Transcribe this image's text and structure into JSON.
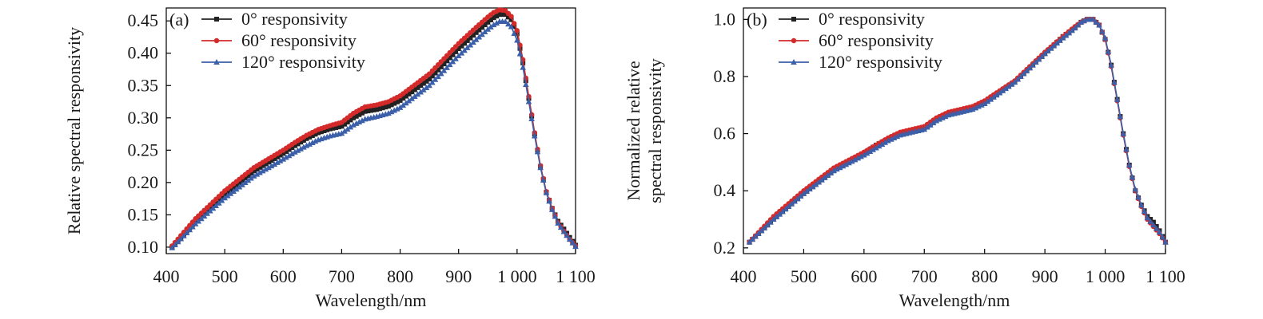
{
  "colors": {
    "s0": "#222222",
    "s60": "#d42a2a",
    "s120": "#3b5fa8"
  },
  "chart_data": [
    {
      "type": "line",
      "panel_label": "(a)",
      "xlabel": "Wavelength/nm",
      "ylabel": "Relative spectral responsivity",
      "xlim": [
        400,
        1100
      ],
      "ylim": [
        0.09,
        0.47
      ],
      "xticks": [
        400,
        500,
        600,
        700,
        800,
        900,
        1000,
        1100
      ],
      "xtick_labels": [
        "400",
        "500",
        "600",
        "700",
        "800",
        "900",
        "1 000",
        "1 100"
      ],
      "yticks": [
        0.1,
        0.15,
        0.2,
        0.25,
        0.3,
        0.35,
        0.4,
        0.45
      ],
      "ytick_labels": [
        "0.10",
        "0.15",
        "0.20",
        "0.25",
        "0.30",
        "0.35",
        "0.40",
        "0.45"
      ],
      "legend_position": "top-left",
      "series": [
        {
          "name": "0° responsivity",
          "marker": "square",
          "color": "#222222",
          "x": [
            410,
            450,
            500,
            550,
            600,
            620,
            640,
            660,
            680,
            700,
            720,
            740,
            760,
            780,
            800,
            850,
            900,
            930,
            950,
            960,
            970,
            980,
            990,
            1000,
            1010,
            1020,
            1030,
            1040,
            1050,
            1060,
            1070,
            1080,
            1090,
            1100
          ],
          "values": [
            0.1,
            0.14,
            0.182,
            0.218,
            0.245,
            0.257,
            0.268,
            0.277,
            0.283,
            0.287,
            0.3,
            0.31,
            0.313,
            0.318,
            0.327,
            0.36,
            0.407,
            0.432,
            0.448,
            0.455,
            0.46,
            0.46,
            0.452,
            0.43,
            0.385,
            0.33,
            0.275,
            0.225,
            0.185,
            0.16,
            0.14,
            0.128,
            0.115,
            0.103
          ]
        },
        {
          "name": "60° responsivity",
          "marker": "circle",
          "color": "#d42a2a",
          "x": [
            410,
            450,
            500,
            550,
            600,
            620,
            640,
            660,
            680,
            700,
            720,
            740,
            760,
            780,
            800,
            850,
            900,
            930,
            950,
            960,
            970,
            980,
            990,
            1000,
            1010,
            1020,
            1030,
            1040,
            1050,
            1060,
            1070,
            1080,
            1090,
            1100
          ],
          "values": [
            0.102,
            0.144,
            0.187,
            0.223,
            0.25,
            0.262,
            0.273,
            0.282,
            0.288,
            0.293,
            0.307,
            0.317,
            0.32,
            0.325,
            0.334,
            0.368,
            0.415,
            0.44,
            0.456,
            0.463,
            0.467,
            0.466,
            0.457,
            0.435,
            0.39,
            0.333,
            0.277,
            0.226,
            0.186,
            0.16,
            0.138,
            0.125,
            0.112,
            0.102
          ]
        },
        {
          "name": "120° responsivity",
          "marker": "triangle",
          "color": "#3b5fa8",
          "x": [
            410,
            450,
            500,
            550,
            600,
            620,
            640,
            660,
            680,
            700,
            720,
            740,
            760,
            780,
            800,
            850,
            900,
            930,
            950,
            960,
            970,
            980,
            990,
            1000,
            1010,
            1020,
            1030,
            1040,
            1050,
            1060,
            1070,
            1080,
            1090,
            1100
          ],
          "values": [
            0.099,
            0.136,
            0.176,
            0.21,
            0.236,
            0.247,
            0.257,
            0.266,
            0.272,
            0.276,
            0.289,
            0.298,
            0.302,
            0.307,
            0.316,
            0.35,
            0.396,
            0.421,
            0.437,
            0.444,
            0.449,
            0.449,
            0.441,
            0.42,
            0.378,
            0.325,
            0.272,
            0.223,
            0.184,
            0.158,
            0.137,
            0.124,
            0.112,
            0.101
          ]
        }
      ]
    },
    {
      "type": "line",
      "panel_label": "(b)",
      "xlabel": "Wavelength/nm",
      "ylabel": "Normalized relative spectral responsivity",
      "ylabel_lines": [
        "Normalized relative",
        "spectral responsivity"
      ],
      "xlim": [
        400,
        1100
      ],
      "ylim": [
        0.18,
        1.04
      ],
      "xticks": [
        400,
        500,
        600,
        700,
        800,
        900,
        1000,
        1100
      ],
      "xtick_labels": [
        "400",
        "500",
        "600",
        "700",
        "800",
        "900",
        "1 000",
        "1 100"
      ],
      "yticks": [
        0.2,
        0.4,
        0.6,
        0.8,
        1.0
      ],
      "ytick_labels": [
        "0.2",
        "0.4",
        "0.6",
        "0.8",
        "1.0"
      ],
      "legend_position": "top-left",
      "series": [
        {
          "name": "0° responsivity",
          "marker": "square",
          "color": "#222222",
          "x": [
            410,
            450,
            500,
            550,
            600,
            620,
            640,
            660,
            680,
            700,
            720,
            740,
            760,
            780,
            800,
            850,
            900,
            930,
            950,
            960,
            970,
            980,
            990,
            1000,
            1010,
            1020,
            1030,
            1040,
            1050,
            1060,
            1070,
            1080,
            1090,
            1100
          ],
          "values": [
            0.22,
            0.3,
            0.39,
            0.47,
            0.53,
            0.56,
            0.58,
            0.6,
            0.61,
            0.62,
            0.65,
            0.67,
            0.68,
            0.69,
            0.71,
            0.78,
            0.88,
            0.94,
            0.97,
            0.99,
            1.0,
            1.0,
            0.98,
            0.93,
            0.84,
            0.72,
            0.6,
            0.49,
            0.4,
            0.35,
            0.31,
            0.29,
            0.26,
            0.22
          ]
        },
        {
          "name": "60° responsivity",
          "marker": "circle",
          "color": "#d42a2a",
          "x": [
            410,
            450,
            500,
            550,
            600,
            620,
            640,
            660,
            680,
            700,
            720,
            740,
            760,
            780,
            800,
            850,
            900,
            930,
            950,
            960,
            970,
            980,
            990,
            1000,
            1010,
            1020,
            1030,
            1040,
            1050,
            1060,
            1070,
            1080,
            1090,
            1100
          ],
          "values": [
            0.22,
            0.31,
            0.4,
            0.48,
            0.535,
            0.56,
            0.585,
            0.605,
            0.615,
            0.625,
            0.655,
            0.675,
            0.685,
            0.695,
            0.715,
            0.785,
            0.885,
            0.94,
            0.975,
            0.99,
            1.0,
            1.0,
            0.98,
            0.93,
            0.835,
            0.715,
            0.595,
            0.485,
            0.4,
            0.345,
            0.3,
            0.275,
            0.25,
            0.22
          ]
        },
        {
          "name": "120° responsivity",
          "marker": "triangle",
          "color": "#3b5fa8",
          "x": [
            410,
            450,
            500,
            550,
            600,
            620,
            640,
            660,
            680,
            700,
            720,
            740,
            760,
            780,
            800,
            850,
            900,
            930,
            950,
            960,
            970,
            980,
            990,
            1000,
            1010,
            1020,
            1030,
            1040,
            1050,
            1060,
            1070,
            1080,
            1090,
            1100
          ],
          "values": [
            0.22,
            0.3,
            0.39,
            0.47,
            0.525,
            0.55,
            0.575,
            0.595,
            0.605,
            0.615,
            0.645,
            0.665,
            0.675,
            0.685,
            0.705,
            0.78,
            0.88,
            0.935,
            0.97,
            0.99,
            1.0,
            1.0,
            0.98,
            0.935,
            0.84,
            0.72,
            0.6,
            0.49,
            0.405,
            0.35,
            0.305,
            0.28,
            0.255,
            0.22
          ]
        }
      ]
    }
  ]
}
